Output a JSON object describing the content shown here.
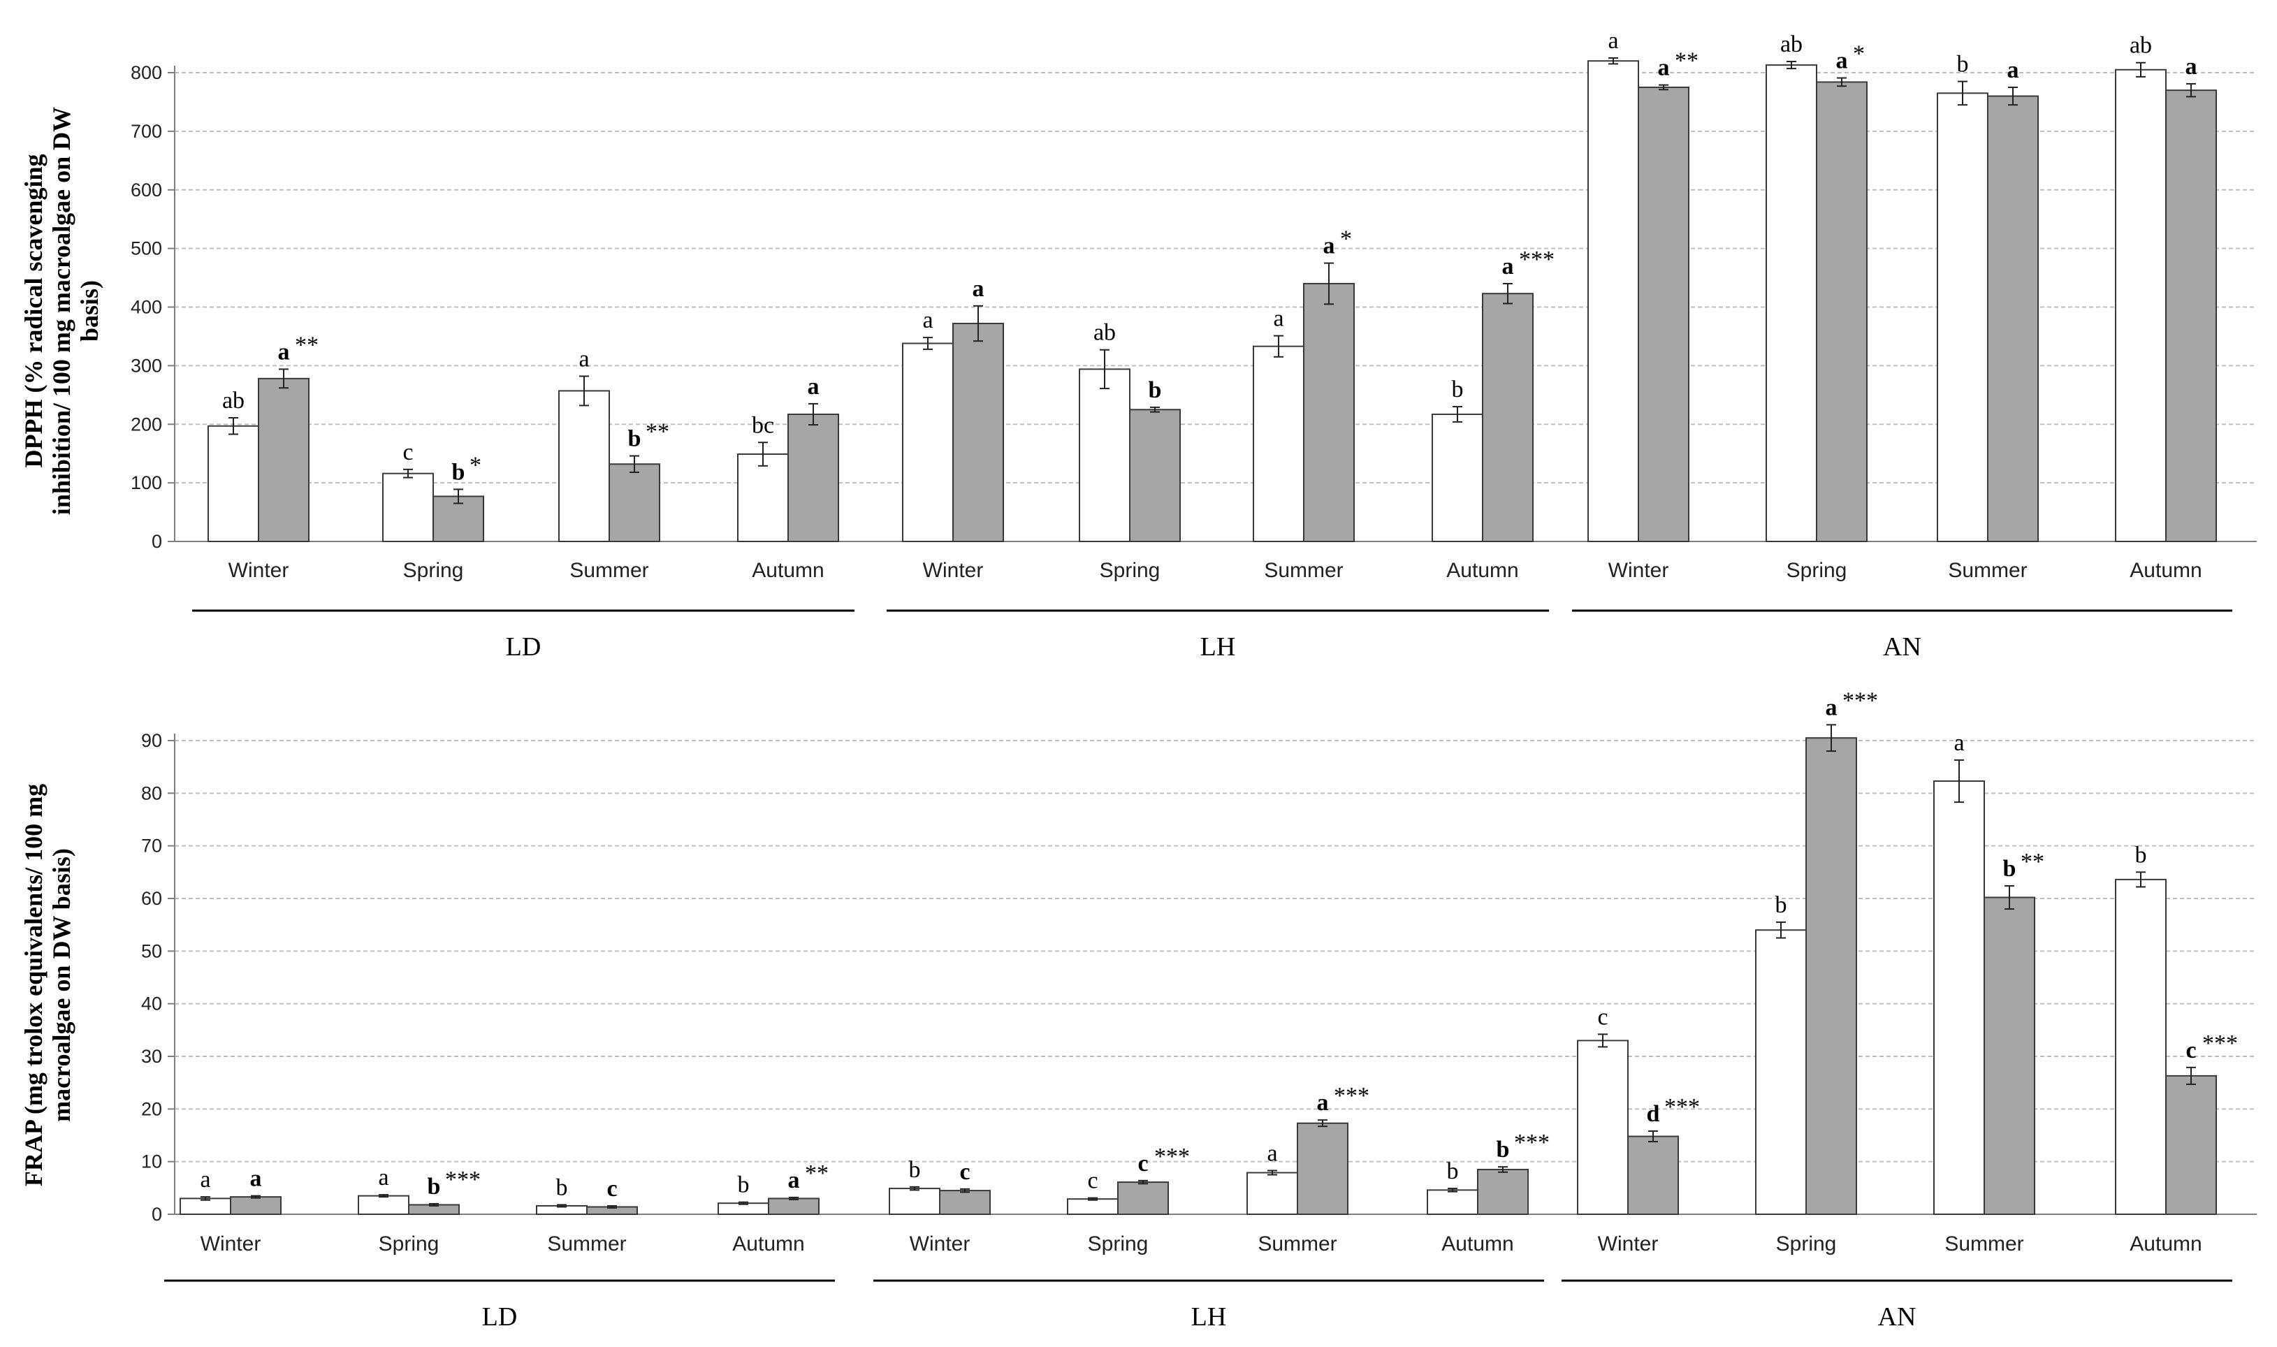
{
  "chart_data": [
    {
      "type": "bar",
      "ylabel_lines": [
        "DPPH (% radical scavenging",
        "inhibition/ 100 mg macroalgae on DW",
        "basis)"
      ],
      "ylim": [
        0,
        800
      ],
      "yticks": [
        "0",
        "100",
        "200",
        "300",
        "400",
        "500",
        "600",
        "700",
        "800"
      ],
      "grid": true,
      "groups": [
        {
          "name": "LD",
          "seasons": [
            {
              "season": "Winter",
              "white": 197,
              "white_err": 14,
              "white_label": "ab",
              "grey": 278,
              "grey_err": 16,
              "grey_label": "a",
              "grey_sig": "**"
            },
            {
              "season": "Spring",
              "white": 116,
              "white_err": 7,
              "white_label": "c",
              "grey": 77,
              "grey_err": 12,
              "grey_label": "b",
              "grey_sig": "*"
            },
            {
              "season": "Summer",
              "white": 257,
              "white_err": 25,
              "white_label": "a",
              "grey": 132,
              "grey_err": 14,
              "grey_label": "b",
              "grey_sig": "**"
            },
            {
              "season": "Autumn",
              "white": 149,
              "white_err": 20,
              "white_label": "bc",
              "grey": 217,
              "grey_err": 18,
              "grey_label": "a",
              "grey_sig": ""
            }
          ]
        },
        {
          "name": "LH",
          "seasons": [
            {
              "season": "Winter",
              "white": 338,
              "white_err": 10,
              "white_label": "a",
              "grey": 372,
              "grey_err": 30,
              "grey_label": "a",
              "grey_sig": ""
            },
            {
              "season": "Spring",
              "white": 294,
              "white_err": 33,
              "white_label": "ab",
              "grey": 225,
              "grey_err": 4,
              "grey_label": "b",
              "grey_sig": ""
            },
            {
              "season": "Summer",
              "white": 333,
              "white_err": 18,
              "white_label": "a",
              "grey": 440,
              "grey_err": 35,
              "grey_label": "a",
              "grey_sig": "*"
            },
            {
              "season": "Autumn",
              "white": 217,
              "white_err": 13,
              "white_label": "b",
              "grey": 423,
              "grey_err": 17,
              "grey_label": "a",
              "grey_sig": "***"
            }
          ]
        },
        {
          "name": "AN",
          "seasons": [
            {
              "season": "Winter",
              "white": 820,
              "white_err": 5,
              "white_label": "a",
              "grey": 775,
              "grey_err": 4,
              "grey_label": "a",
              "grey_sig": "**"
            },
            {
              "season": "Spring",
              "white": 813,
              "white_err": 6,
              "white_label": "ab",
              "grey": 784,
              "grey_err": 7,
              "grey_label": "a",
              "grey_sig": "*"
            },
            {
              "season": "Summer",
              "white": 765,
              "white_err": 20,
              "white_label": "b",
              "grey": 760,
              "grey_err": 15,
              "grey_label": "a",
              "grey_sig": ""
            },
            {
              "season": "Autumn",
              "white": 805,
              "white_err": 12,
              "white_label": "ab",
              "grey": 770,
              "grey_err": 11,
              "grey_label": "a",
              "grey_sig": ""
            }
          ]
        }
      ]
    },
    {
      "type": "bar",
      "ylabel_lines": [
        "FRAP (mg trolox equivalents/ 100 mg",
        "macroalgae on DW basis)"
      ],
      "ylim": [
        0,
        90
      ],
      "yticks": [
        "0",
        "10",
        "20",
        "30",
        "40",
        "50",
        "60",
        "70",
        "80",
        "90"
      ],
      "grid": true,
      "groups": [
        {
          "name": "LD",
          "seasons": [
            {
              "season": "Winter",
              "white": 3.0,
              "white_err": 0.3,
              "white_label": "a",
              "grey": 3.3,
              "grey_err": 0.2,
              "grey_label": "a",
              "grey_sig": ""
            },
            {
              "season": "Spring",
              "white": 3.5,
              "white_err": 0.2,
              "white_label": "a",
              "grey": 1.8,
              "grey_err": 0.2,
              "grey_label": "b",
              "grey_sig": "***"
            },
            {
              "season": "Summer",
              "white": 1.6,
              "white_err": 0.2,
              "white_label": "b",
              "grey": 1.4,
              "grey_err": 0.2,
              "grey_label": "c",
              "grey_sig": ""
            },
            {
              "season": "Autumn",
              "white": 2.1,
              "white_err": 0.2,
              "white_label": "b",
              "grey": 3.0,
              "grey_err": 0.2,
              "grey_label": "a",
              "grey_sig": "**"
            }
          ]
        },
        {
          "name": "LH",
          "seasons": [
            {
              "season": "Winter",
              "white": 4.9,
              "white_err": 0.3,
              "white_label": "b",
              "grey": 4.5,
              "grey_err": 0.3,
              "grey_label": "c",
              "grey_sig": ""
            },
            {
              "season": "Spring",
              "white": 2.9,
              "white_err": 0.2,
              "white_label": "c",
              "grey": 6.1,
              "grey_err": 0.3,
              "grey_label": "c",
              "grey_sig": "***"
            },
            {
              "season": "Summer",
              "white": 7.9,
              "white_err": 0.4,
              "white_label": "a",
              "grey": 17.3,
              "grey_err": 0.6,
              "grey_label": "a",
              "grey_sig": "***"
            },
            {
              "season": "Autumn",
              "white": 4.6,
              "white_err": 0.3,
              "white_label": "b",
              "grey": 8.5,
              "grey_err": 0.5,
              "grey_label": "b",
              "grey_sig": "***"
            }
          ]
        },
        {
          "name": "AN",
          "seasons": [
            {
              "season": "Winter",
              "white": 33.0,
              "white_err": 1.2,
              "white_label": "c",
              "grey": 14.8,
              "grey_err": 1.0,
              "grey_label": "d",
              "grey_sig": "***"
            },
            {
              "season": "Spring",
              "white": 54.0,
              "white_err": 1.5,
              "white_label": "b",
              "grey": 90.5,
              "grey_err": 2.5,
              "grey_label": "a",
              "grey_sig": "***"
            },
            {
              "season": "Summer",
              "white": 82.3,
              "white_err": 4.0,
              "white_label": "a",
              "grey": 60.2,
              "grey_err": 2.2,
              "grey_label": "b",
              "grey_sig": "**"
            },
            {
              "season": "Autumn",
              "white": 63.6,
              "white_err": 1.4,
              "white_label": "b",
              "grey": 26.3,
              "grey_err": 1.6,
              "grey_label": "c",
              "grey_sig": "***"
            }
          ]
        }
      ]
    }
  ],
  "colors": {
    "white_bar": "#ffffff",
    "grey_bar": "#a6a6a6",
    "bar_stroke": "#3a3a3a",
    "grid": "#bfbfbf",
    "axis": "#7f7f7f",
    "group_line": "#000000"
  }
}
